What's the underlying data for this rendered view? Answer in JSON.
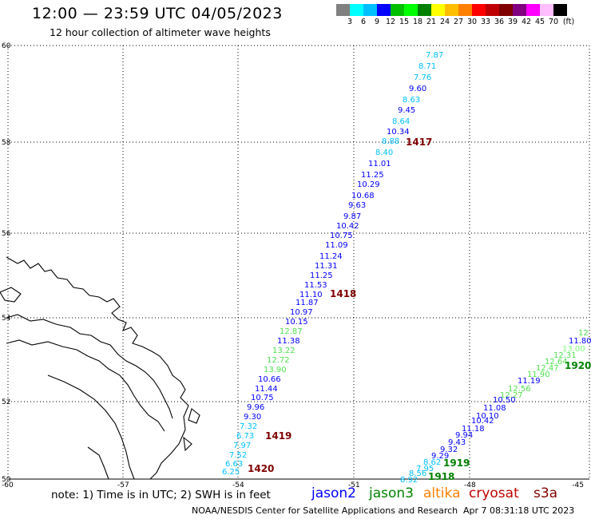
{
  "header": {
    "title": "12:00 — 23:59 UTC 04/05/2023",
    "subtitle": "12 hour collection of altimeter wave heights"
  },
  "legend": {
    "colors": [
      "#808080",
      "#00ffff",
      "#00bfff",
      "#0000ff",
      "#00bf00",
      "#00ff00",
      "#008000",
      "#ffff00",
      "#ffbf00",
      "#ff8000",
      "#ff0000",
      "#bf0000",
      "#800000",
      "#800080",
      "#ff00ff",
      "#ffbfff",
      "#000000"
    ],
    "labels": [
      "3",
      "6",
      "9",
      "12",
      "15",
      "18",
      "21",
      "24",
      "27",
      "30",
      "33",
      "36",
      "39",
      "42",
      "45",
      "70",
      "(ft)"
    ]
  },
  "map": {
    "lat_ticks": [
      "60",
      "58",
      "56",
      "54",
      "52",
      "50"
    ],
    "lon_ticks": [
      "-60",
      "-57",
      "-54",
      "-51",
      "-48",
      "-45"
    ],
    "passes": [
      {
        "id": "1417",
        "color": "#800000"
      },
      {
        "id": "1418",
        "color": "#800000"
      },
      {
        "id": "1419",
        "color": "#800000"
      },
      {
        "id": "1420",
        "color": "#800000"
      },
      {
        "id": "1920",
        "color": "#008000"
      },
      {
        "id": "1919",
        "color": "#008000"
      },
      {
        "id": "1918",
        "color": "#008000"
      }
    ],
    "track1": [
      {
        "v": "7.87",
        "c": "#00bfff"
      },
      {
        "v": "8.71",
        "c": "#00bfff"
      },
      {
        "v": "7.76",
        "c": "#00bfff"
      },
      {
        "v": "9.60",
        "c": "#0000ff"
      },
      {
        "v": "8.63",
        "c": "#00bfff"
      },
      {
        "v": "9.45",
        "c": "#0000ff"
      },
      {
        "v": "8.64",
        "c": "#00bfff"
      },
      {
        "v": "10.34",
        "c": "#0000ff"
      },
      {
        "v": "8.88",
        "c": "#00bfff"
      },
      {
        "v": "8.40",
        "c": "#00bfff"
      },
      {
        "v": "11.01",
        "c": "#0000ff"
      },
      {
        "v": "11.25",
        "c": "#0000ff"
      },
      {
        "v": "10.29",
        "c": "#0000ff"
      },
      {
        "v": "10.68",
        "c": "#0000ff"
      },
      {
        "v": "9.63",
        "c": "#0000ff"
      },
      {
        "v": "9.87",
        "c": "#0000ff"
      },
      {
        "v": "10.42",
        "c": "#0000ff"
      },
      {
        "v": "10.75",
        "c": "#0000ff"
      },
      {
        "v": "11.09",
        "c": "#0000ff"
      },
      {
        "v": "11.24",
        "c": "#0000ff"
      },
      {
        "v": "11.31",
        "c": "#0000ff"
      },
      {
        "v": "11.25",
        "c": "#0000ff"
      },
      {
        "v": "11.53",
        "c": "#0000ff"
      },
      {
        "v": "11.10",
        "c": "#0000ff"
      },
      {
        "v": "11.87",
        "c": "#0000ff"
      },
      {
        "v": "10.97",
        "c": "#0000ff"
      },
      {
        "v": "10.15",
        "c": "#0000ff"
      },
      {
        "v": "12.87",
        "c": "#4fdf4f"
      },
      {
        "v": "11.38",
        "c": "#0000ff"
      },
      {
        "v": "13.22",
        "c": "#4fdf4f"
      },
      {
        "v": "12.72",
        "c": "#4fdf4f"
      },
      {
        "v": "13.90",
        "c": "#4fdf4f"
      },
      {
        "v": "10.66",
        "c": "#0000ff"
      },
      {
        "v": "11.44",
        "c": "#0000ff"
      },
      {
        "v": "10.75",
        "c": "#0000ff"
      },
      {
        "v": "9.96",
        "c": "#0000ff"
      },
      {
        "v": "9.30",
        "c": "#0000ff"
      },
      {
        "v": "7.32",
        "c": "#00bfff"
      },
      {
        "v": "6.73",
        "c": "#00bfff"
      },
      {
        "v": "7.97",
        "c": "#00bfff"
      },
      {
        "v": "7.52",
        "c": "#00bfff"
      },
      {
        "v": "6.63",
        "c": "#00bfff"
      },
      {
        "v": "6.25",
        "c": "#00bfff"
      }
    ],
    "track2": [
      {
        "v": "12",
        "c": "#4fdf4f"
      },
      {
        "v": "11.80",
        "c": "#0000ff"
      },
      {
        "v": "13.00",
        "c": "#7fff7f"
      },
      {
        "v": "12.31",
        "c": "#4fdf4f"
      },
      {
        "v": "12.64",
        "c": "#4fdf4f"
      },
      {
        "v": "12.47",
        "c": "#4fdf4f"
      },
      {
        "v": "11.90",
        "c": "#4fdf4f"
      },
      {
        "v": "11.19",
        "c": "#0000ff"
      },
      {
        "v": "12.56",
        "c": "#4fdf4f"
      },
      {
        "v": "12.27",
        "c": "#4fdf4f"
      },
      {
        "v": "10.50",
        "c": "#0000ff"
      },
      {
        "v": "11.08",
        "c": "#0000ff"
      },
      {
        "v": "10.10",
        "c": "#0000ff"
      },
      {
        "v": "10.42",
        "c": "#0000ff"
      },
      {
        "v": "11.18",
        "c": "#0000ff"
      },
      {
        "v": "9.94",
        "c": "#0000ff"
      },
      {
        "v": "9.43",
        "c": "#0000ff"
      },
      {
        "v": "9.32",
        "c": "#0000ff"
      },
      {
        "v": "9.29",
        "c": "#0000ff"
      },
      {
        "v": "8.62",
        "c": "#00bfff"
      },
      {
        "v": "7.95",
        "c": "#00bfff"
      },
      {
        "v": "8.56",
        "c": "#00bfff"
      },
      {
        "v": "8.92",
        "c": "#00bfff"
      }
    ]
  },
  "footer": {
    "note": "note: 1) Time is in UTC; 2) SWH is in feet",
    "satellites": [
      {
        "name": "jason2",
        "color": "#0000ff"
      },
      {
        "name": "jason3",
        "color": "#008000"
      },
      {
        "name": "altika",
        "color": "#ff8000"
      },
      {
        "name": "cryosat",
        "color": "#bf0000"
      },
      {
        "name": "s3a",
        "color": "#800000"
      }
    ],
    "credit": "NOAA/NESDIS Center for Satellite Applications and Research",
    "timestamp": "Apr  7 08:31:18 UTC 2023"
  }
}
